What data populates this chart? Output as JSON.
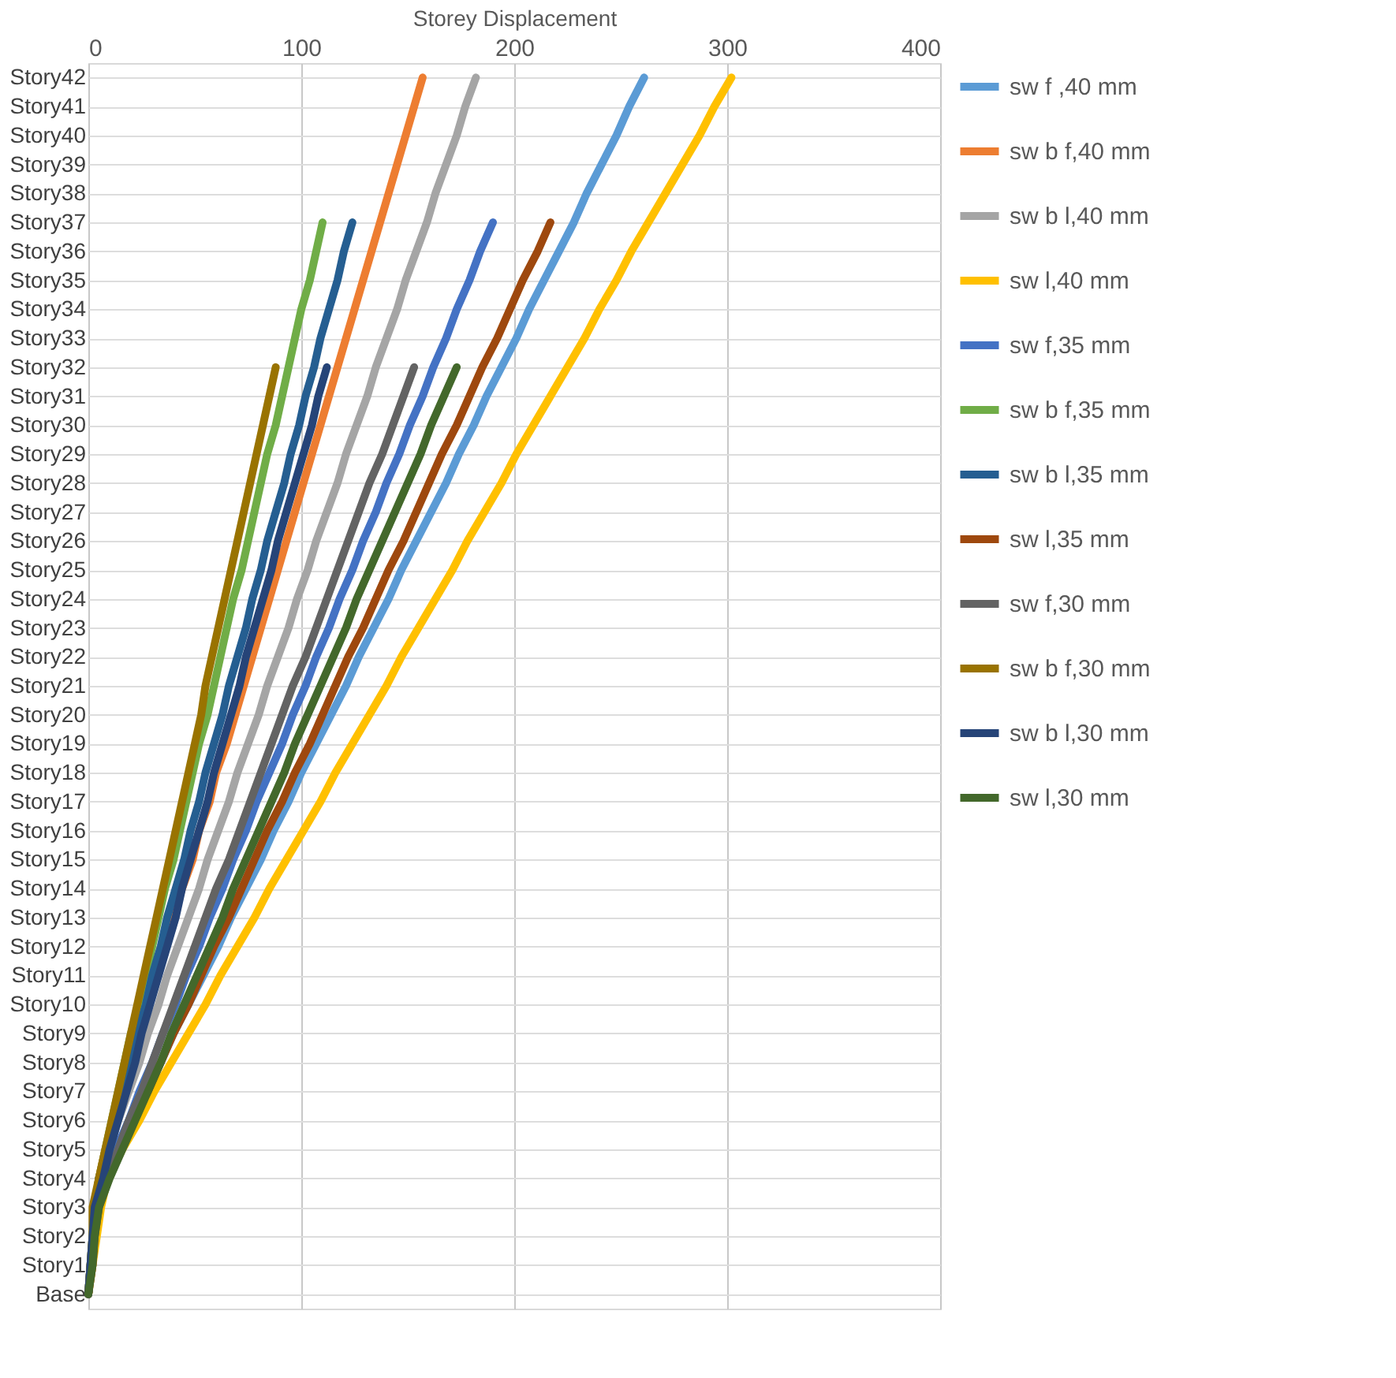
{
  "chart_data": {
    "type": "line",
    "orientation": "horizontal",
    "xlabel": "Storey Displacement",
    "categories": [
      "Story42",
      "Story41",
      "Story40",
      "Story39",
      "Story38",
      "Story37",
      "Story36",
      "Story35",
      "Story34",
      "Story33",
      "Story32",
      "Story31",
      "Story30",
      "Story29",
      "Story28",
      "Story27",
      "Story26",
      "Story25",
      "Story24",
      "Story23",
      "Story22",
      "Story21",
      "Story20",
      "Story19",
      "Story18",
      "Story17",
      "Story16",
      "Story15",
      "Story14",
      "Story13",
      "Story12",
      "Story11",
      "Story10",
      "Story9",
      "Story8",
      "Story7",
      "Story6",
      "Story5",
      "Story4",
      "Story3",
      "Story2",
      "Story1",
      "Base"
    ],
    "xlim": [
      0,
      400
    ],
    "xticks": [
      0,
      100,
      200,
      300,
      400
    ],
    "grid": true,
    "legend": "right",
    "marker": "none",
    "line_style": "solid",
    "series": [
      {
        "name": "sw f ,40 mm",
        "color": "#5b9bd5",
        "values": [
          261,
          254,
          248,
          241,
          234,
          228,
          221,
          214,
          207,
          201,
          194,
          187,
          181,
          174,
          168,
          161,
          154,
          147,
          141,
          134,
          127,
          121,
          114,
          107,
          100,
          94,
          87,
          81,
          74,
          67,
          61,
          54,
          47,
          40,
          34,
          27,
          20,
          14,
          8,
          null,
          null,
          null,
          null
        ]
      },
      {
        "name": "sw b f,40 mm",
        "color": "#ed7d31",
        "values": [
          157,
          153,
          149,
          145,
          141,
          137,
          133,
          129,
          125,
          121,
          117,
          113,
          109,
          105,
          101,
          97,
          93,
          89,
          85,
          81,
          77,
          73,
          69,
          65,
          60,
          57,
          52,
          49,
          44,
          40,
          36,
          32,
          28,
          24,
          20,
          16,
          12,
          8,
          5,
          3,
          2,
          1,
          0
        ]
      },
      {
        "name": "sw b l,40 mm",
        "color": "#a5a5a5",
        "values": [
          182,
          177,
          173,
          168,
          163,
          159,
          154,
          149,
          145,
          140,
          135,
          131,
          126,
          121,
          117,
          112,
          107,
          103,
          98,
          94,
          89,
          84,
          80,
          75,
          70,
          66,
          61,
          56,
          52,
          47,
          42,
          37,
          33,
          28,
          24,
          19,
          14,
          10,
          5,
          4,
          3,
          1,
          0
        ]
      },
      {
        "name": "sw l,40 mm",
        "color": "#ffc000",
        "values": [
          302,
          294,
          287,
          279,
          271,
          263,
          255,
          248,
          240,
          233,
          225,
          217,
          209,
          201,
          194,
          186,
          178,
          171,
          163,
          155,
          147,
          140,
          132,
          124,
          116,
          109,
          101,
          93,
          85,
          78,
          70,
          62,
          55,
          47,
          39,
          31,
          24,
          16,
          9,
          6,
          4,
          2,
          0
        ]
      },
      {
        "name": "sw f,35 mm",
        "color": "#4472c4",
        "values": [
          null,
          null,
          null,
          null,
          null,
          190,
          184,
          179,
          173,
          168,
          162,
          157,
          151,
          146,
          140,
          135,
          129,
          124,
          118,
          113,
          107,
          102,
          96,
          91,
          85,
          79,
          74,
          68,
          63,
          57,
          52,
          46,
          41,
          35,
          30,
          24,
          19,
          13,
          8,
          null,
          null,
          null,
          null
        ]
      },
      {
        "name": "sw b f,35 mm",
        "color": "#70ad47",
        "values": [
          null,
          null,
          null,
          null,
          null,
          110,
          107,
          104,
          100,
          97,
          94,
          91,
          88,
          84,
          81,
          78,
          75,
          72,
          68,
          65,
          62,
          59,
          56,
          52,
          49,
          46,
          43,
          40,
          36,
          33,
          30,
          27,
          24,
          20,
          17,
          14,
          11,
          8,
          5,
          3,
          2,
          1,
          0
        ]
      },
      {
        "name": "sw b l,35 mm",
        "color": "#255e91",
        "values": [
          null,
          null,
          null,
          null,
          null,
          124,
          120,
          117,
          113,
          109,
          106,
          102,
          99,
          95,
          92,
          88,
          84,
          81,
          77,
          74,
          70,
          66,
          63,
          59,
          55,
          52,
          48,
          45,
          41,
          37,
          34,
          30,
          27,
          23,
          19,
          16,
          12,
          9,
          5,
          3,
          2,
          1,
          0
        ]
      },
      {
        "name": "sw l,35 mm",
        "color": "#9e480e",
        "values": [
          null,
          null,
          null,
          null,
          null,
          217,
          211,
          204,
          198,
          192,
          185,
          179,
          173,
          166,
          160,
          154,
          148,
          141,
          135,
          129,
          122,
          116,
          110,
          104,
          97,
          91,
          84,
          78,
          72,
          66,
          59,
          53,
          47,
          40,
          34,
          28,
          21,
          15,
          9,
          5,
          3,
          2,
          0
        ]
      },
      {
        "name": "sw  f,30 mm",
        "color": "#636363",
        "values": [
          null,
          null,
          null,
          null,
          null,
          null,
          null,
          null,
          null,
          null,
          153,
          148,
          143,
          138,
          132,
          127,
          122,
          117,
          112,
          107,
          102,
          96,
          91,
          86,
          81,
          76,
          71,
          66,
          60,
          55,
          50,
          45,
          40,
          35,
          30,
          25,
          19,
          14,
          9,
          4,
          3,
          1,
          0
        ]
      },
      {
        "name": "sw b f,30 mm",
        "color": "#997300",
        "values": [
          null,
          null,
          null,
          null,
          null,
          null,
          null,
          null,
          null,
          null,
          88,
          85,
          82,
          79,
          76,
          73,
          70,
          67,
          64,
          61,
          58,
          55,
          53,
          50,
          47,
          44,
          41,
          38,
          35,
          32,
          29,
          26,
          23,
          20,
          17,
          14,
          11,
          8,
          5,
          2,
          2,
          1,
          0
        ]
      },
      {
        "name": "sw b l,30 mm",
        "color": "#264478",
        "values": [
          null,
          null,
          null,
          null,
          null,
          null,
          null,
          null,
          null,
          null,
          112,
          108,
          105,
          101,
          97,
          93,
          89,
          86,
          82,
          78,
          74,
          71,
          67,
          63,
          59,
          56,
          52,
          48,
          44,
          41,
          37,
          33,
          29,
          25,
          22,
          18,
          14,
          10,
          7,
          3,
          2,
          1,
          0
        ]
      },
      {
        "name": "sw l,30 mm",
        "color": "#43682b",
        "values": [
          null,
          null,
          null,
          null,
          null,
          null,
          null,
          null,
          null,
          null,
          173,
          167,
          161,
          156,
          150,
          144,
          138,
          132,
          126,
          121,
          115,
          109,
          103,
          97,
          92,
          86,
          80,
          74,
          68,
          63,
          57,
          51,
          45,
          39,
          34,
          28,
          22,
          16,
          10,
          5,
          3,
          2,
          0
        ]
      }
    ]
  }
}
